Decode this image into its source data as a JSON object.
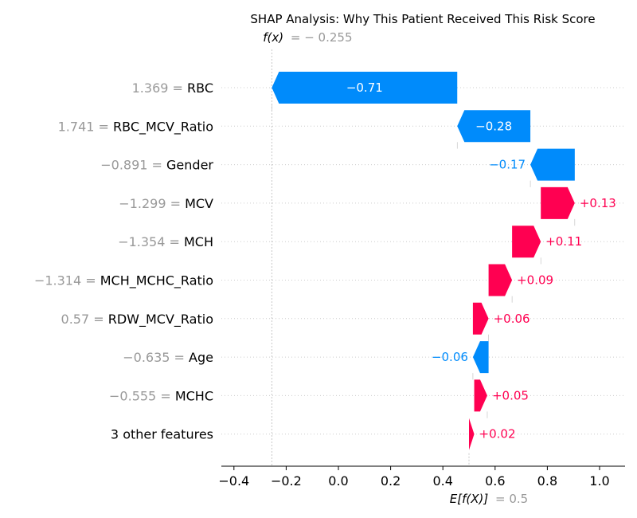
{
  "chart_data": {
    "type": "bar",
    "title": "SHAP Analysis: Why This Patient Received This Risk Score",
    "fx": {
      "symbol": "f(x)",
      "value_text": "= − 0.255",
      "value": -0.255
    },
    "base": {
      "symbol": "E[f(X)]",
      "value_text": "= 0.5",
      "value": 0.5
    },
    "xlim": [
      -0.45,
      1.1
    ],
    "xticks": [
      {
        "value": -0.4,
        "label": "−0.4"
      },
      {
        "value": -0.2,
        "label": "−0.2"
      },
      {
        "value": 0.0,
        "label": "0.0"
      },
      {
        "value": 0.2,
        "label": "0.2"
      },
      {
        "value": 0.4,
        "label": "0.4"
      },
      {
        "value": 0.6,
        "label": "0.6"
      },
      {
        "value": 0.8,
        "label": "0.8"
      },
      {
        "value": 1.0,
        "label": "1.0"
      }
    ],
    "features": [
      {
        "value_text": "1.369 =",
        "name": "RBC",
        "start": 0.455,
        "shap": -0.71,
        "label": "−0.71"
      },
      {
        "value_text": "1.741 =",
        "name": "RBC_MCV_Ratio",
        "start": 0.735,
        "shap": -0.28,
        "label": "−0.28"
      },
      {
        "value_text": "−0.891 =",
        "name": "Gender",
        "start": 0.905,
        "shap": -0.17,
        "label": "−0.17"
      },
      {
        "value_text": "−1.299 =",
        "name": "MCV",
        "start": 0.775,
        "shap": 0.13,
        "label": "+0.13"
      },
      {
        "value_text": "−1.354 =",
        "name": "MCH",
        "start": 0.665,
        "shap": 0.11,
        "label": "+0.11"
      },
      {
        "value_text": "−1.314 =",
        "name": "MCH_MCHC_Ratio",
        "start": 0.575,
        "shap": 0.09,
        "label": "+0.09"
      },
      {
        "value_text": "0.57 =",
        "name": "RDW_MCV_Ratio",
        "start": 0.515,
        "shap": 0.06,
        "label": "+0.06"
      },
      {
        "value_text": "−0.635 =",
        "name": "Age",
        "start": 0.575,
        "shap": -0.06,
        "label": "−0.06"
      },
      {
        "value_text": "−0.555 =",
        "name": "MCHC",
        "start": 0.52,
        "shap": 0.05,
        "label": "+0.05"
      },
      {
        "value_text": "",
        "name": "3 other features",
        "start": 0.5,
        "shap": 0.02,
        "label": "+0.02"
      }
    ],
    "colors": {
      "positive": "#ff0051",
      "negative": "#008bfb",
      "fx_value": "#999999"
    }
  }
}
